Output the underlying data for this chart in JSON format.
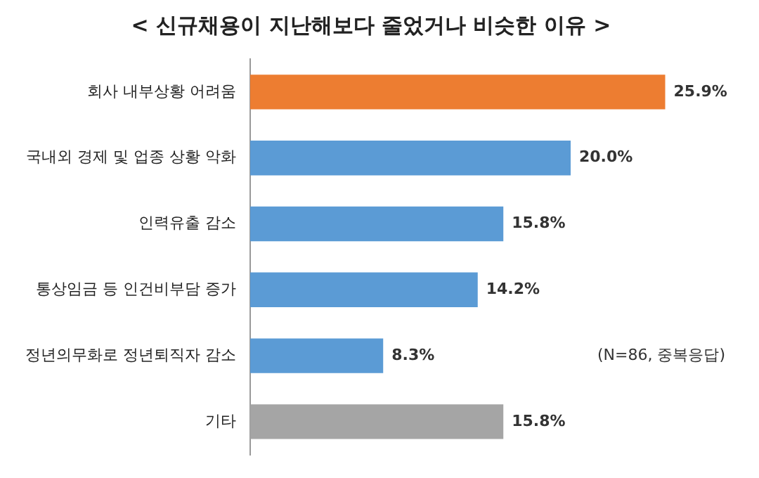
{
  "chart_data": {
    "type": "bar",
    "orientation": "horizontal",
    "title": "< 신규채용이 지난해보다 줄었거나 비슷한 이유 >",
    "categories": [
      "회사 내부상황 어려움",
      "국내외 경제 및 업종 상황 악화",
      "인력유출 감소",
      "통상임금 등 인건비부담 증가",
      "정년의무화로 정년퇴직자 감소",
      "기타"
    ],
    "values": [
      25.9,
      20.0,
      15.8,
      14.2,
      8.3,
      15.8
    ],
    "colors": [
      "#ed7d31",
      "#5b9bd5",
      "#5b9bd5",
      "#5b9bd5",
      "#5b9bd5",
      "#a5a5a5"
    ],
    "value_labels": [
      "25.9%",
      "20.0%",
      "15.8%",
      "14.2%",
      "8.3%",
      "15.8%"
    ],
    "annotations": [
      "(N=86, 중복응답)"
    ],
    "grid": false,
    "legend": false
  }
}
